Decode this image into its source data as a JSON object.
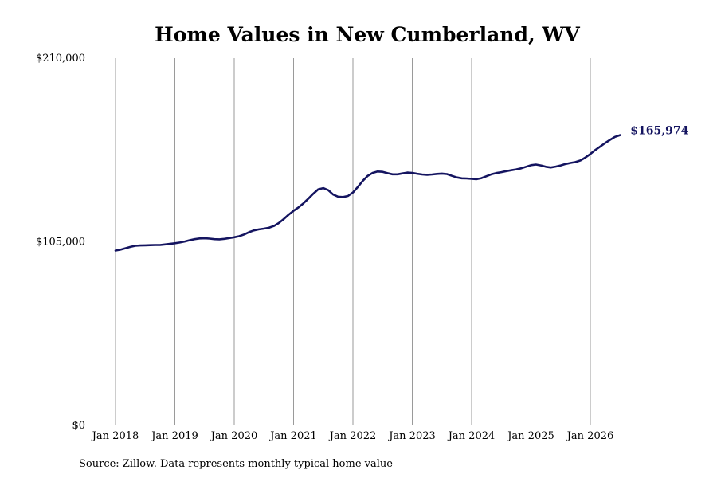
{
  "chart_data": {
    "type": "line",
    "title": "Home Values in New Cumberland, WV",
    "source": "Source: Zillow. Data represents monthly typical home value",
    "ylim": [
      0,
      210000
    ],
    "y_ticks": [
      "$0",
      "$105,000",
      "$210,000"
    ],
    "y_tick_values": [
      0,
      105000,
      210000
    ],
    "x_ticks": [
      "Jan 2018",
      "Jan 2019",
      "Jan 2020",
      "Jan 2021",
      "Jan 2022",
      "Jan 2023",
      "Jan 2024",
      "Jan 2025",
      "Jan 2026"
    ],
    "x_tick_years": [
      2018,
      2019,
      2020,
      2021,
      2022,
      2023,
      2024,
      2025,
      2026
    ],
    "grid": "vertical",
    "end_label": "$165,974",
    "series": [
      {
        "color": "#141460",
        "points": [
          [
            "2018-01",
            100000
          ],
          [
            "2018-02",
            100500
          ],
          [
            "2018-03",
            101300
          ],
          [
            "2018-04",
            102100
          ],
          [
            "2018-05",
            102700
          ],
          [
            "2018-06",
            102900
          ],
          [
            "2018-07",
            103000
          ],
          [
            "2018-08",
            103100
          ],
          [
            "2018-09",
            103200
          ],
          [
            "2018-10",
            103200
          ],
          [
            "2018-11",
            103500
          ],
          [
            "2018-12",
            103800
          ],
          [
            "2019-01",
            104200
          ],
          [
            "2019-02",
            104600
          ],
          [
            "2019-03",
            105200
          ],
          [
            "2019-04",
            105900
          ],
          [
            "2019-05",
            106500
          ],
          [
            "2019-06",
            106900
          ],
          [
            "2019-07",
            107000
          ],
          [
            "2019-08",
            106800
          ],
          [
            "2019-09",
            106500
          ],
          [
            "2019-10",
            106400
          ],
          [
            "2019-11",
            106700
          ],
          [
            "2019-12",
            107100
          ],
          [
            "2020-01",
            107600
          ],
          [
            "2020-02",
            108200
          ],
          [
            "2020-03",
            109200
          ],
          [
            "2020-04",
            110500
          ],
          [
            "2020-05",
            111500
          ],
          [
            "2020-06",
            112100
          ],
          [
            "2020-07",
            112500
          ],
          [
            "2020-08",
            113000
          ],
          [
            "2020-09",
            114000
          ],
          [
            "2020-10",
            115700
          ],
          [
            "2020-11",
            118000
          ],
          [
            "2020-12",
            120500
          ],
          [
            "2021-01",
            122700
          ],
          [
            "2021-02",
            124700
          ],
          [
            "2021-03",
            127000
          ],
          [
            "2021-04",
            129700
          ],
          [
            "2021-05",
            132500
          ],
          [
            "2021-06",
            135000
          ],
          [
            "2021-07",
            135700
          ],
          [
            "2021-08",
            134500
          ],
          [
            "2021-09",
            132000
          ],
          [
            "2021-10",
            130800
          ],
          [
            "2021-11",
            130600
          ],
          [
            "2021-12",
            131200
          ],
          [
            "2022-01",
            133200
          ],
          [
            "2022-02",
            136400
          ],
          [
            "2022-03",
            139900
          ],
          [
            "2022-04",
            142700
          ],
          [
            "2022-05",
            144400
          ],
          [
            "2022-06",
            145200
          ],
          [
            "2022-07",
            145000
          ],
          [
            "2022-08",
            144200
          ],
          [
            "2022-09",
            143600
          ],
          [
            "2022-10",
            143600
          ],
          [
            "2022-11",
            144100
          ],
          [
            "2022-12",
            144600
          ],
          [
            "2023-01",
            144400
          ],
          [
            "2023-02",
            143900
          ],
          [
            "2023-03",
            143500
          ],
          [
            "2023-04",
            143300
          ],
          [
            "2023-05",
            143500
          ],
          [
            "2023-06",
            143800
          ],
          [
            "2023-07",
            144000
          ],
          [
            "2023-08",
            143700
          ],
          [
            "2023-09",
            142700
          ],
          [
            "2023-10",
            141800
          ],
          [
            "2023-11",
            141300
          ],
          [
            "2023-12",
            141200
          ],
          [
            "2024-01",
            141000
          ],
          [
            "2024-02",
            140800
          ],
          [
            "2024-03",
            141400
          ],
          [
            "2024-04",
            142500
          ],
          [
            "2024-05",
            143600
          ],
          [
            "2024-06",
            144300
          ],
          [
            "2024-07",
            144800
          ],
          [
            "2024-08",
            145400
          ],
          [
            "2024-09",
            145900
          ],
          [
            "2024-10",
            146400
          ],
          [
            "2024-11",
            147000
          ],
          [
            "2024-12",
            147900
          ],
          [
            "2025-01",
            148800
          ],
          [
            "2025-02",
            149200
          ],
          [
            "2025-03",
            148700
          ],
          [
            "2025-04",
            147900
          ],
          [
            "2025-05",
            147500
          ],
          [
            "2025-06",
            148000
          ],
          [
            "2025-07",
            148700
          ],
          [
            "2025-08",
            149500
          ],
          [
            "2025-09",
            150100
          ],
          [
            "2025-10",
            150600
          ],
          [
            "2025-11",
            151500
          ],
          [
            "2025-12",
            153200
          ],
          [
            "2026-01",
            155200
          ],
          [
            "2026-02",
            157500
          ],
          [
            "2026-03",
            159500
          ],
          [
            "2026-04",
            161500
          ],
          [
            "2026-05",
            163300
          ],
          [
            "2026-06",
            165000
          ],
          [
            "2026-07",
            165974
          ]
        ]
      }
    ]
  }
}
